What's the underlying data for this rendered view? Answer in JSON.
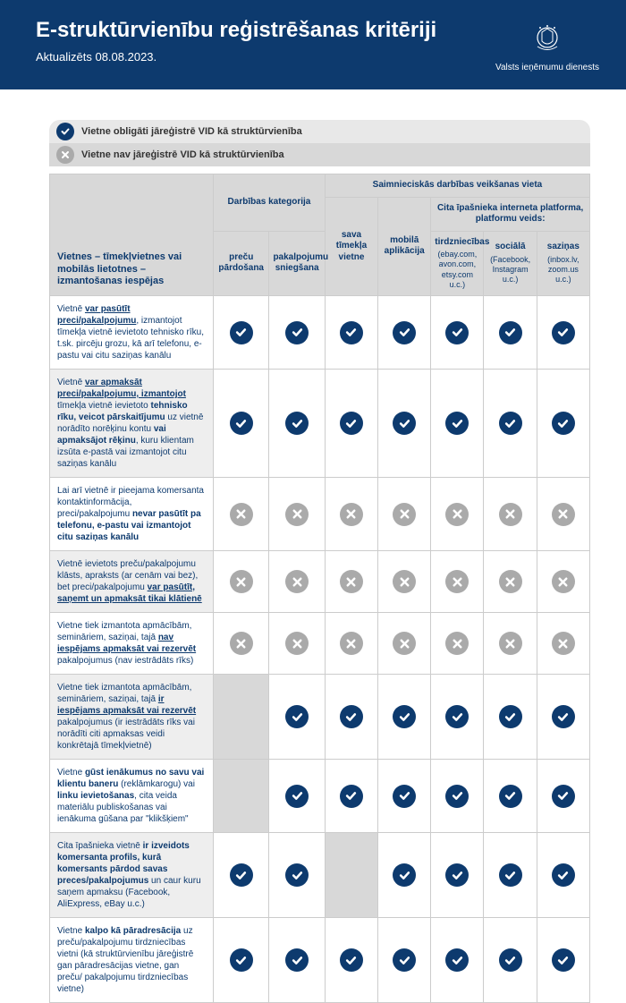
{
  "header": {
    "title": "E-struktūrvienību reģistrēšanas kritēriji",
    "updated": "Aktualizēts 08.08.2023.",
    "org": "Valsts ieņēmumu dienests"
  },
  "legend": {
    "yes": "Vietne obligāti jāreģistrē VID kā struktūrvienība",
    "no": "Vietne nav jāreģistrē VID kā struktūrvienība"
  },
  "colors": {
    "header_bg": "#0d3a6e",
    "check_bg": "#0d3a6e",
    "x_bg": "#aaaaaa",
    "th_bg": "#d8d8d8",
    "stripe_bg": "#eeeeee"
  },
  "table": {
    "rowhead_title": "Vietnes – tīmekļvietnes vai mobilās lietotnes – izmantošanas iespējas",
    "group1_title": "Darbības kategorija",
    "group2_title": "Saimnieciskās darbības veikšanas vieta",
    "group3_title": "Cita īpašnieka interneta platforma, platformu veids:",
    "col1": "preču pārdošana",
    "col2": "pakalpojumu sniegšana",
    "col3": "sava tīmekļa vietne",
    "col4": "mobilā aplikācija",
    "col5": "tirdzniecības",
    "col5_sub": "(ebay.com, avon.com, etsy.com u.c.)",
    "col6": "sociālā",
    "col6_sub": "(Facebook, Instagram u.c.)",
    "col7": "saziņas",
    "col7_sub": "(inbox.lv, zoom.us u.c.)"
  },
  "rows": [
    {
      "html": "Vietnē <b><u>var pasūtīt preci/pakalpojumu</u></b>, izmantojot tīmekļa vietnē ievietoto tehnisko rīku, t.sk. pircēju grozu, kā arī telefonu, e-pastu vai citu saziņas kanālu",
      "cells": [
        "y",
        "y",
        "y",
        "y",
        "y",
        "y",
        "y"
      ]
    },
    {
      "html": "Vietnē <b><u>var apmaksāt preci/pakalpojumu, izmantojot</u></b> tīmekļa vietnē ievietoto <b>tehnisko rīku, veicot pārskaitījumu</b> uz vietnē norādīto norēķinu kontu <b>vai apmaksājot rēķinu</b>, kuru klientam izsūta e-pastā vai izmantojot citu saziņas kanālu",
      "cells": [
        "y",
        "y",
        "y",
        "y",
        "y",
        "y",
        "y"
      ]
    },
    {
      "html": "Lai arī vietnē ir pieejama komersanta kontaktinformācija, preci/pakalpojumu <b>nevar pasūtīt pa telefonu, e-pastu vai izmantojot citu saziņas kanālu</b>",
      "cells": [
        "n",
        "n",
        "n",
        "n",
        "n",
        "n",
        "n"
      ]
    },
    {
      "html": "Vietnē ievietots preču/pakalpojumu klāsts, apraksts (ar cenām vai bez), bet preci/pakalpojumu <b><u>var pasūtīt, saņemt un apmaksāt tikai klātienē</u></b>",
      "cells": [
        "n",
        "n",
        "n",
        "n",
        "n",
        "n",
        "n"
      ]
    },
    {
      "html": "Vietne tiek izmantota apmācībām, semināriem, saziņai, tajā <b><u>nav iespējams apmaksāt vai rezervēt</u></b> pakalpojumus (nav iestrādāts rīks)",
      "cells": [
        "n",
        "n",
        "n",
        "n",
        "n",
        "n",
        "n"
      ]
    },
    {
      "html": "Vietne tiek izmantota apmācībām, semināriem, saziņai, tajā <b><u>ir iespējams apmaksāt vai rezervēt</u></b> pakalpojumus (ir iestrādāts rīks vai norādīti citi apmaksas veidi konkrētajā tīmekļvietnē)",
      "cells": [
        "b",
        "y",
        "y",
        "y",
        "y",
        "y",
        "y"
      ]
    },
    {
      "html": "Vietne <b>gūst ienākumus no savu vai klientu baneru</b> (reklāmkarogu) vai <b>linku ievietošanas</b>, cita veida materiālu publiskošanas vai ienākuma gūšana par \"klikšķiem\"",
      "cells": [
        "b",
        "y",
        "y",
        "y",
        "y",
        "y",
        "y"
      ]
    },
    {
      "html": "Cita īpašnieka vietnē <b>ir izveidots komersanta profils, kurā komersants pārdod savas preces/pakalpojumus</b> un caur kuru saņem apmaksu (Facebook, AliExpress, eBay u.c.)",
      "cells": [
        "y",
        "y",
        "b",
        "y",
        "y",
        "y",
        "y"
      ]
    },
    {
      "html": "Vietne <b>kalpo kā pāradresācija</b> uz preču/pakalpojumu tirdzniecības vietni (kā struktūrvienību jāreģistrē gan pāradresācijas vietne, gan preču/ pakalpojumu tirdzniecības vietne)",
      "cells": [
        "y",
        "y",
        "y",
        "y",
        "y",
        "y",
        "y"
      ]
    }
  ]
}
